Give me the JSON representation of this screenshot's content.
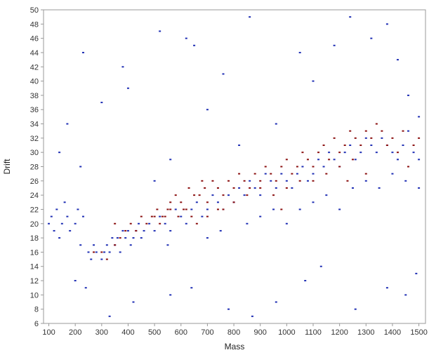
{
  "chart_data": {
    "type": "scatter",
    "xlabel": "Mass",
    "ylabel": "Drift",
    "xlim": [
      80,
      1525
    ],
    "ylim": [
      6,
      50
    ],
    "x_ticks": [
      100,
      200,
      300,
      400,
      500,
      600,
      700,
      800,
      900,
      1000,
      1100,
      1200,
      1300,
      1400,
      1500
    ],
    "y_ticks": [
      6,
      8,
      10,
      12,
      14,
      16,
      18,
      20,
      22,
      24,
      26,
      28,
      30,
      32,
      34,
      36,
      38,
      40,
      42,
      44,
      46,
      48,
      50
    ],
    "grid": false,
    "legend": "none",
    "colors": {
      "series_a": "#1f2fb4",
      "series_b": "#8b1010",
      "axis": "#999999"
    },
    "series": [
      {
        "color": "#1f2fb4",
        "points": [
          [
            100,
            20
          ],
          [
            110,
            21
          ],
          [
            120,
            19
          ],
          [
            130,
            22
          ],
          [
            140,
            18
          ],
          [
            150,
            20
          ],
          [
            160,
            23
          ],
          [
            170,
            21
          ],
          [
            180,
            19
          ],
          [
            200,
            20
          ],
          [
            210,
            22
          ],
          [
            220,
            17
          ],
          [
            230,
            21
          ],
          [
            250,
            16
          ],
          [
            260,
            15
          ],
          [
            270,
            17
          ],
          [
            280,
            16
          ],
          [
            300,
            15
          ],
          [
            310,
            16
          ],
          [
            320,
            17
          ],
          [
            330,
            16
          ],
          [
            340,
            18
          ],
          [
            350,
            17
          ],
          [
            360,
            18
          ],
          [
            370,
            16
          ],
          [
            380,
            19
          ],
          [
            390,
            18
          ],
          [
            400,
            19
          ],
          [
            410,
            17
          ],
          [
            420,
            18
          ],
          [
            430,
            19
          ],
          [
            440,
            20
          ],
          [
            450,
            18
          ],
          [
            460,
            19
          ],
          [
            480,
            20
          ],
          [
            500,
            19
          ],
          [
            520,
            21
          ],
          [
            540,
            20
          ],
          [
            560,
            19
          ],
          [
            580,
            22
          ],
          [
            600,
            21
          ],
          [
            620,
            20
          ],
          [
            640,
            22
          ],
          [
            660,
            23
          ],
          [
            680,
            21
          ],
          [
            700,
            22
          ],
          [
            720,
            24
          ],
          [
            740,
            23
          ],
          [
            760,
            22
          ],
          [
            780,
            24
          ],
          [
            800,
            23
          ],
          [
            820,
            25
          ],
          [
            840,
            24
          ],
          [
            860,
            26
          ],
          [
            880,
            25
          ],
          [
            900,
            24
          ],
          [
            920,
            27
          ],
          [
            940,
            26
          ],
          [
            960,
            25
          ],
          [
            980,
            27
          ],
          [
            1000,
            26
          ],
          [
            1020,
            25
          ],
          [
            1040,
            27
          ],
          [
            1060,
            28
          ],
          [
            1080,
            26
          ],
          [
            1100,
            27
          ],
          [
            1120,
            29
          ],
          [
            1140,
            28
          ],
          [
            1160,
            30
          ],
          [
            1180,
            29
          ],
          [
            1200,
            28
          ],
          [
            1220,
            30
          ],
          [
            1240,
            31
          ],
          [
            1260,
            29
          ],
          [
            1280,
            30
          ],
          [
            1300,
            32
          ],
          [
            1320,
            31
          ],
          [
            1340,
            30
          ],
          [
            1360,
            32
          ],
          [
            1380,
            31
          ],
          [
            1400,
            30
          ],
          [
            1420,
            29
          ],
          [
            1440,
            31
          ],
          [
            1460,
            33
          ],
          [
            1480,
            30
          ],
          [
            1500,
            29
          ],
          [
            500,
            26
          ],
          [
            550,
            17
          ],
          [
            700,
            18
          ],
          [
            750,
            19
          ],
          [
            850,
            20
          ],
          [
            900,
            21
          ],
          [
            950,
            22
          ],
          [
            1000,
            20
          ],
          [
            1050,
            22
          ],
          [
            1100,
            23
          ],
          [
            1150,
            24
          ],
          [
            1200,
            22
          ],
          [
            1250,
            25
          ],
          [
            1300,
            26
          ],
          [
            1350,
            25
          ],
          [
            1400,
            27
          ],
          [
            1450,
            26
          ],
          [
            1500,
            25
          ],
          [
            140,
            30
          ],
          [
            170,
            34
          ],
          [
            220,
            28
          ],
          [
            230,
            44
          ],
          [
            300,
            37
          ],
          [
            380,
            42
          ],
          [
            400,
            39
          ],
          [
            520,
            47
          ],
          [
            560,
            29
          ],
          [
            620,
            46
          ],
          [
            650,
            45
          ],
          [
            700,
            36
          ],
          [
            760,
            41
          ],
          [
            820,
            31
          ],
          [
            860,
            49
          ],
          [
            960,
            34
          ],
          [
            1050,
            44
          ],
          [
            1100,
            40
          ],
          [
            1180,
            45
          ],
          [
            1240,
            49
          ],
          [
            1320,
            46
          ],
          [
            1380,
            48
          ],
          [
            1420,
            43
          ],
          [
            1460,
            38
          ],
          [
            1500,
            35
          ],
          [
            200,
            12
          ],
          [
            240,
            11
          ],
          [
            330,
            7
          ],
          [
            420,
            9
          ],
          [
            560,
            10
          ],
          [
            640,
            11
          ],
          [
            780,
            8
          ],
          [
            870,
            7
          ],
          [
            960,
            9
          ],
          [
            1070,
            12
          ],
          [
            1130,
            14
          ],
          [
            1260,
            8
          ],
          [
            1380,
            11
          ],
          [
            1450,
            10
          ],
          [
            1490,
            13
          ]
        ]
      },
      {
        "color": "#8b1010",
        "points": [
          [
            270,
            16
          ],
          [
            300,
            16
          ],
          [
            320,
            15
          ],
          [
            350,
            17
          ],
          [
            370,
            18
          ],
          [
            390,
            19
          ],
          [
            410,
            20
          ],
          [
            430,
            19
          ],
          [
            450,
            21
          ],
          [
            470,
            20
          ],
          [
            490,
            21
          ],
          [
            510,
            22
          ],
          [
            530,
            21
          ],
          [
            550,
            22
          ],
          [
            560,
            23
          ],
          [
            580,
            24
          ],
          [
            600,
            23
          ],
          [
            610,
            22
          ],
          [
            630,
            25
          ],
          [
            650,
            24
          ],
          [
            670,
            24
          ],
          [
            690,
            25
          ],
          [
            700,
            23
          ],
          [
            720,
            26
          ],
          [
            740,
            25
          ],
          [
            760,
            24
          ],
          [
            780,
            26
          ],
          [
            800,
            25
          ],
          [
            820,
            27
          ],
          [
            840,
            26
          ],
          [
            860,
            25
          ],
          [
            880,
            27
          ],
          [
            900,
            26
          ],
          [
            920,
            28
          ],
          [
            940,
            27
          ],
          [
            960,
            26
          ],
          [
            980,
            28
          ],
          [
            1000,
            29
          ],
          [
            1020,
            27
          ],
          [
            1040,
            28
          ],
          [
            1060,
            30
          ],
          [
            1080,
            29
          ],
          [
            1100,
            28
          ],
          [
            1120,
            30
          ],
          [
            1140,
            31
          ],
          [
            1160,
            29
          ],
          [
            1180,
            32
          ],
          [
            1200,
            30
          ],
          [
            1220,
            31
          ],
          [
            1240,
            33
          ],
          [
            1260,
            32
          ],
          [
            1280,
            31
          ],
          [
            1300,
            33
          ],
          [
            1320,
            32
          ],
          [
            1340,
            34
          ],
          [
            1360,
            33
          ],
          [
            1380,
            31
          ],
          [
            1400,
            32
          ],
          [
            1420,
            30
          ],
          [
            1440,
            33
          ],
          [
            500,
            21
          ],
          [
            520,
            20
          ],
          [
            540,
            21
          ],
          [
            560,
            22
          ],
          [
            590,
            21
          ],
          [
            620,
            22
          ],
          [
            640,
            21
          ],
          [
            660,
            20
          ],
          [
            700,
            21
          ],
          [
            740,
            22
          ],
          [
            800,
            23
          ],
          [
            850,
            24
          ],
          [
            900,
            25
          ],
          [
            950,
            24
          ],
          [
            1000,
            25
          ],
          [
            1050,
            26
          ],
          [
            1100,
            26
          ],
          [
            1150,
            27
          ],
          [
            1200,
            28
          ],
          [
            1250,
            29
          ],
          [
            350,
            20
          ],
          [
            680,
            26
          ],
          [
            760,
            22
          ],
          [
            980,
            22
          ],
          [
            1230,
            26
          ],
          [
            1300,
            27
          ],
          [
            1460,
            28
          ],
          [
            1480,
            31
          ],
          [
            1500,
            32
          ]
        ]
      }
    ]
  }
}
